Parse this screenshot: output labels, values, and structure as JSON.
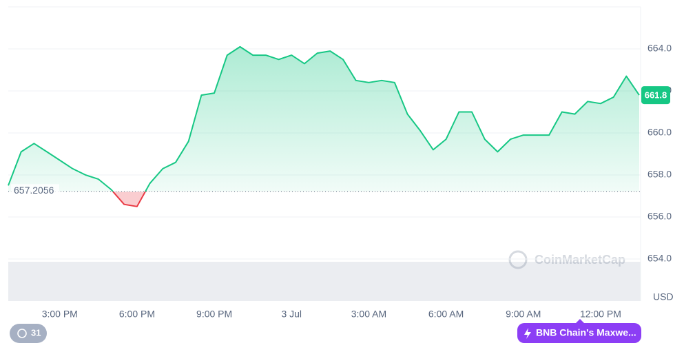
{
  "chart_data": {
    "type": "line",
    "x": [
      13,
      13.5,
      14,
      14.5,
      15,
      15.5,
      16,
      16.5,
      17,
      17.5,
      18,
      18.5,
      19,
      19.5,
      20,
      20.5,
      21,
      21.5,
      22,
      22.5,
      23,
      23.5,
      24,
      24.5,
      25,
      25.5,
      26,
      26.5,
      27,
      27.5,
      28,
      28.5,
      29,
      29.5,
      30,
      30.5,
      31,
      31.5,
      32,
      32.5,
      33,
      33.5,
      34,
      34.5,
      35,
      35.5,
      36,
      36.5,
      37,
      37.5
    ],
    "series": [
      {
        "name": "BNB",
        "color": "#16c784",
        "negative_color": "#ea3943",
        "values": [
          657.5,
          659.1,
          659.5,
          659.1,
          658.7,
          658.3,
          658.0,
          657.8,
          657.3,
          656.6,
          656.5,
          657.6,
          658.3,
          658.6,
          659.6,
          661.8,
          661.9,
          663.7,
          664.1,
          663.7,
          663.7,
          663.5,
          663.7,
          663.3,
          663.8,
          663.9,
          663.5,
          662.5,
          662.4,
          662.5,
          662.4,
          660.9,
          660.1,
          659.2,
          659.7,
          661.0,
          661.0,
          659.7,
          659.1,
          659.7,
          659.9,
          659.9,
          659.9,
          661.0,
          660.9,
          661.5,
          661.4,
          661.7,
          662.7,
          661.8
        ]
      }
    ],
    "baseline": 657.2056,
    "current_price": {
      "value": 661.8,
      "label": "661.8"
    },
    "xlim": [
      13,
      37.5
    ],
    "xticks": [
      {
        "value": 15,
        "label": "3:00 PM"
      },
      {
        "value": 18,
        "label": "6:00 PM"
      },
      {
        "value": 21,
        "label": "9:00 PM"
      },
      {
        "value": 24,
        "label": "3 Jul"
      },
      {
        "value": 27,
        "label": "3:00 AM"
      },
      {
        "value": 30,
        "label": "6:00 AM"
      },
      {
        "value": 33,
        "label": "9:00 AM"
      },
      {
        "value": 36,
        "label": "12:00 PM"
      }
    ],
    "ylim": [
      652,
      666
    ],
    "yticks": [
      {
        "value": 654,
        "label": "654.0"
      },
      {
        "value": 656,
        "label": "656.0"
      },
      {
        "value": 658,
        "label": "658.0"
      },
      {
        "value": 660,
        "label": "660.0"
      },
      {
        "value": 662,
        "label": "662.0"
      },
      {
        "value": 664,
        "label": "664.0"
      }
    ],
    "y_axis_label": "USD",
    "grid": true,
    "watermark": "CoinMarketCap",
    "history_badge": "31",
    "chain_button": "BNB Chain's Maxwe..."
  }
}
